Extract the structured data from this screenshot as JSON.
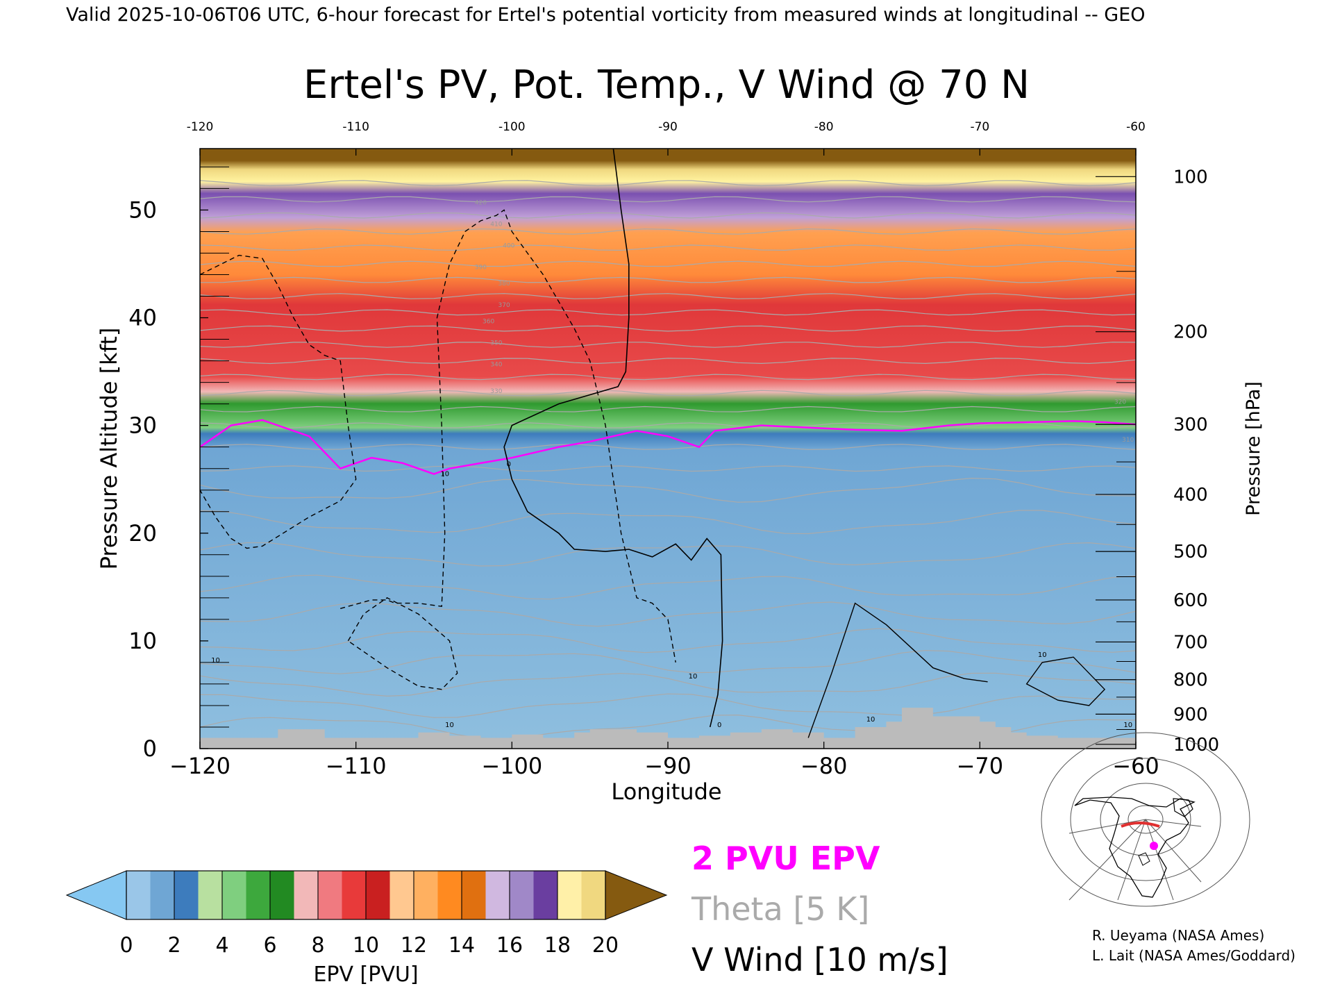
{
  "header": {
    "valid_line": "Valid 2025-10-06T06 UTC, 6-hour forecast for Ertel's potential vorticity from measured winds at longitudinal -- GEO"
  },
  "chart_data": {
    "type": "heatmap",
    "title": "Ertel's PV, Pot. Temp., V Wind @ 70 N",
    "xlabel": "Longitude",
    "ylabel_left": "Pressure Altitude [kft]",
    "ylabel_right": "Pressure [hPa]",
    "xlim": [
      -120,
      -60
    ],
    "ylim": [
      0,
      55.7
    ],
    "x_ticks": [
      -120,
      -110,
      -100,
      -90,
      -80,
      -70,
      -60
    ],
    "x_tick_labels": [
      "−120",
      "−110",
      "−100",
      "−90",
      "−80",
      "−70",
      "−60"
    ],
    "top_x_tick_labels": [
      "-120",
      "-110",
      "-100",
      "-90",
      "-80",
      "-70",
      "-60"
    ],
    "y_ticks": [
      0,
      10,
      20,
      30,
      40,
      50
    ],
    "y_tick_labels": [
      "0",
      "10",
      "20",
      "30",
      "40",
      "50"
    ],
    "pressure_ticks": [
      {
        "hpa": 100,
        "kft": 53.1,
        "label": "100"
      },
      {
        "hpa": 200,
        "kft": 38.7,
        "label": "200"
      },
      {
        "hpa": 300,
        "kft": 30.1,
        "label": "300"
      },
      {
        "hpa": 400,
        "kft": 23.6,
        "label": "400"
      },
      {
        "hpa": 500,
        "kft": 18.3,
        "label": "500"
      },
      {
        "hpa": 600,
        "kft": 13.8,
        "label": "600"
      },
      {
        "hpa": 700,
        "kft": 9.9,
        "label": "700"
      },
      {
        "hpa": 800,
        "kft": 6.4,
        "label": "800"
      },
      {
        "hpa": 900,
        "kft": 3.2,
        "label": "900"
      },
      {
        "hpa": 1000,
        "kft": 0.4,
        "label": "1000"
      }
    ],
    "epv_layers": [
      {
        "from_kft": 0,
        "to_kft": 29.5,
        "color": "#8fbfdf"
      },
      {
        "from_kft": 29.5,
        "to_kft": 33.0,
        "color": "#3faa3f"
      },
      {
        "from_kft": 33.0,
        "to_kft": 45.0,
        "color": "#e8454a"
      },
      {
        "from_kft": 45.0,
        "to_kft": 49.0,
        "color": "#ff9a33"
      },
      {
        "from_kft": 49.0,
        "to_kft": 52.5,
        "color": "#9a7ac4"
      },
      {
        "from_kft": 52.5,
        "to_kft": 54.3,
        "color": "#fff3a0"
      },
      {
        "from_kft": 54.3,
        "to_kft": 55.7,
        "color": "#855a10"
      }
    ],
    "pv2_contour": {
      "label": "2 PVU EPV",
      "color": "#ff00ff",
      "x": [
        -120,
        -118,
        -116,
        -113,
        -111,
        -109,
        -107,
        -105,
        -104,
        -102,
        -100,
        -97,
        -95,
        -92,
        -90,
        -88,
        -87,
        -84,
        -81,
        -78,
        -75,
        -72,
        -70,
        -67,
        -64,
        -62,
        -60
      ],
      "y": [
        28,
        30,
        30.5,
        29,
        26,
        27,
        26.5,
        25.5,
        26,
        26.5,
        27,
        28,
        28.5,
        29.5,
        29,
        28,
        29.5,
        30,
        29.8,
        29.6,
        29.5,
        30,
        30.2,
        30.3,
        30.4,
        30.3,
        30.1
      ]
    },
    "theta_isentropes": {
      "label": "Theta [5 K]",
      "color": "#aaaaaa",
      "levels_kft": [
        2,
        4,
        6,
        8,
        10,
        12.5,
        15,
        18,
        21,
        24,
        26,
        28,
        30,
        31.5,
        33,
        34.5,
        36,
        37.5,
        39,
        40.5,
        42,
        43.5,
        45,
        46.5,
        48,
        49.5,
        51,
        52.5
      ],
      "labels": [
        {
          "text": "310",
          "lon": -60.5,
          "kft": 28.5
        },
        {
          "text": "320",
          "lon": -61,
          "kft": 32
        },
        {
          "text": "330",
          "lon": -101,
          "kft": 33
        },
        {
          "text": "340",
          "lon": -101,
          "kft": 35.5
        },
        {
          "text": "350",
          "lon": -101,
          "kft": 37.5
        },
        {
          "text": "360",
          "lon": -101.5,
          "kft": 39.5
        },
        {
          "text": "370",
          "lon": -100.5,
          "kft": 41
        },
        {
          "text": "380",
          "lon": -100.5,
          "kft": 43
        },
        {
          "text": "390",
          "lon": -102,
          "kft": 44.5
        },
        {
          "text": "400",
          "lon": -100.2,
          "kft": 46.5
        },
        {
          "text": "410",
          "lon": -101,
          "kft": 48.5
        },
        {
          "text": "420",
          "lon": -102,
          "kft": 50.5
        }
      ]
    },
    "v_wind_contours": {
      "label": "V Wind [10 m/s]",
      "color": "#000000",
      "zero_line": {
        "x": [
          -93.5,
          -93,
          -92.5,
          -92.5,
          -92.7,
          -93.2,
          -97,
          -100,
          -100.5,
          -100,
          -99,
          -97,
          -96,
          -94,
          -92.5,
          -91,
          -89.5,
          -88.5,
          -87.5,
          -86.6,
          -86.5,
          -86.8,
          -87.3
        ],
        "y": [
          55.7,
          50,
          45,
          40,
          35,
          33.6,
          32,
          30,
          28,
          25,
          22,
          20,
          18.5,
          18.3,
          18.5,
          17.8,
          19,
          17.5,
          19.5,
          18,
          10,
          5,
          2
        ]
      },
      "neg10_left": {
        "x": [
          -120,
          -117.5,
          -116,
          -115,
          -114,
          -113,
          -112,
          -111,
          -110.5,
          -110,
          -111,
          -113,
          -116,
          -117,
          -118,
          -119,
          -120
        ],
        "y": [
          44,
          45.8,
          45.5,
          43,
          40,
          37.5,
          36.5,
          36,
          30,
          25,
          23,
          21.5,
          18.8,
          18.6,
          19.5,
          21.5,
          24
        ]
      },
      "neg10_mid": {
        "x": [
          -111,
          -109,
          -108,
          -107.5,
          -106,
          -104.5,
          -104.3,
          -104.5,
          -104.8,
          -104,
          -103,
          -102,
          -101,
          -100.5,
          -100,
          -99,
          -98,
          -96,
          -95,
          -94,
          -93,
          -92,
          -91,
          -90,
          -89.5
        ],
        "y": [
          13,
          13.8,
          13.8,
          13.5,
          13.5,
          13.2,
          20,
          30,
          40,
          45,
          48,
          49,
          49.5,
          50,
          48,
          46,
          44,
          39,
          36,
          30,
          20,
          14,
          13.5,
          12,
          8
        ]
      },
      "neg10_loop": {
        "x": [
          -110.5,
          -109.5,
          -108,
          -106,
          -104,
          -103.5,
          -104.5,
          -106,
          -108,
          -110.5
        ],
        "y": [
          10,
          12.5,
          14,
          12.5,
          10,
          7,
          5.5,
          5.8,
          7.5,
          10
        ]
      },
      "pos10_right": {
        "x": [
          -81,
          -79.5,
          -78,
          -76,
          -73,
          -71,
          -69.5
        ],
        "y": [
          1,
          7,
          13.5,
          11.5,
          7.5,
          6.5,
          6.2
        ]
      },
      "pos10_loop": {
        "x": [
          -67,
          -66,
          -64,
          -62,
          -63,
          -65,
          -67
        ],
        "y": [
          6,
          8,
          8.5,
          5.5,
          4,
          4.5,
          6
        ]
      },
      "labels": [
        {
          "text": "10",
          "lon": -119,
          "kft": 8
        },
        {
          "text": "10",
          "lon": -104,
          "kft": 2
        },
        {
          "text": "10",
          "lon": -104.3,
          "kft": 25.3
        },
        {
          "text": "10",
          "lon": -88.4,
          "kft": 6.5
        },
        {
          "text": "0",
          "lon": -86.7,
          "kft": 2
        },
        {
          "text": "10",
          "lon": -77,
          "kft": 2.5
        },
        {
          "text": "10",
          "lon": -66,
          "kft": 8.5
        },
        {
          "text": "10",
          "lon": -60.5,
          "kft": 2
        },
        {
          "text": "0",
          "lon": -100.2,
          "kft": 26.2
        }
      ]
    },
    "terrain": {
      "color": "#bbbbbb",
      "x": [
        -120,
        -116,
        -115,
        -113,
        -112,
        -108,
        -106,
        -104,
        -102,
        -100,
        -98,
        -96,
        -95,
        -92,
        -90,
        -88,
        -86,
        -84,
        -82,
        -80,
        -78,
        -76,
        -75,
        -74,
        -73,
        -72,
        -71,
        -70,
        -69,
        -68,
        -67,
        -65,
        -63,
        -60
      ],
      "y": [
        1,
        1,
        1.8,
        1.8,
        1,
        1,
        1.5,
        1.2,
        1,
        1.3,
        1,
        1.5,
        1.8,
        1.5,
        1,
        1.2,
        1.5,
        1.8,
        1.5,
        1,
        2,
        2.5,
        3.8,
        3.8,
        3,
        3,
        3,
        2.5,
        2,
        1.5,
        1.2,
        1,
        1,
        0.5
      ]
    }
  },
  "colorbar": {
    "label": "EPV [PVU]",
    "tick_labels": [
      "0",
      "2",
      "4",
      "6",
      "8",
      "10",
      "12",
      "14",
      "16",
      "18",
      "20"
    ],
    "under_color": "#86c8f2",
    "over_color": "#855a10",
    "colors": [
      "#9ac6e8",
      "#6fa6d4",
      "#3d7cbd",
      "#b8e0a0",
      "#7fcf7f",
      "#3da83d",
      "#228a22",
      "#f2b8b8",
      "#f07a80",
      "#e83a3a",
      "#c92020",
      "#ffc890",
      "#ffb060",
      "#ff8a20",
      "#e07010",
      "#d0b8e0",
      "#a088c8",
      "#6a3ea0",
      "#fff0a8",
      "#f0d880"
    ]
  },
  "legend": {
    "pv2": "2 PVU EPV",
    "theta": "Theta [5 K]",
    "vwind": "V Wind [10 m/s]",
    "pv2_color": "#ff00ff",
    "theta_color": "#aaaaaa",
    "vwind_color": "#000000"
  },
  "credits": {
    "line1": "R. Ueyama (NASA Ames)",
    "line2": "L. Lait (NASA Ames/Goddard)"
  },
  "inset_map": {
    "marker_color": "#ff00ff",
    "track_color": "#e03030"
  }
}
